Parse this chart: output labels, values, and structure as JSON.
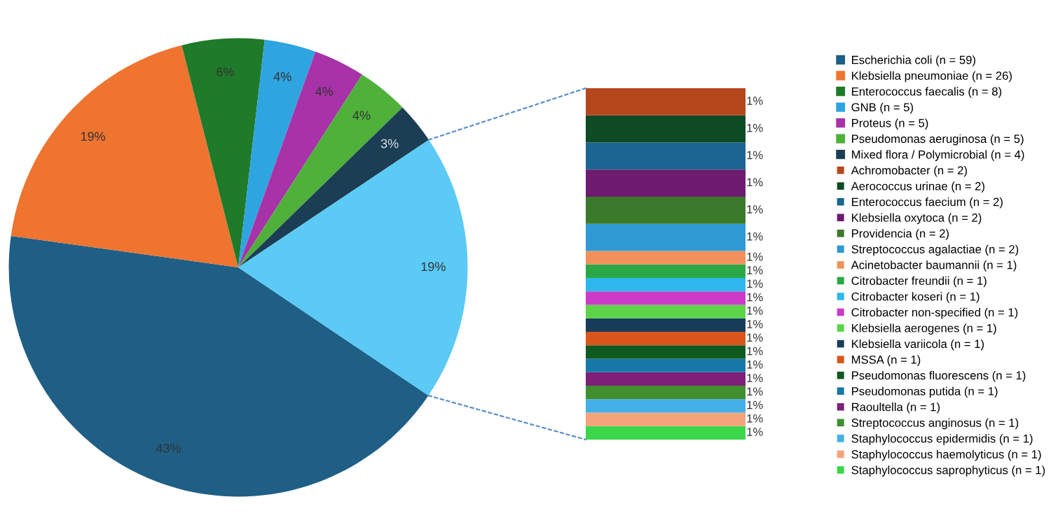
{
  "chart_data": [
    {
      "type": "pie",
      "categories": [
        "Escherichia coli (n = 59)",
        "Klebsiella pneumoniae (n = 26)",
        "Enterococcus faecalis (n = 8)",
        "GNB (n = 5)",
        "Proteus (n = 5)",
        "Pseudomonas aeruginosa (n = 5)",
        "Mixed flora / Polymicrobial (n = 4)",
        null
      ],
      "values": [
        42.75,
        18.84,
        5.8,
        3.62,
        3.62,
        3.62,
        2.9,
        18.84
      ],
      "value_labels": [
        "43%",
        "19%",
        "6%",
        "4%",
        "4%",
        "4%",
        "3%",
        "19%"
      ],
      "colors": [
        "#1f5f86",
        "#ee7430",
        "#1f7a2a",
        "#2ea4e0",
        "#a832a8",
        "#4fb03a",
        "#1b3e55",
        "#5bcaf5"
      ],
      "legend": "right"
    },
    {
      "type": "bar",
      "stacked": true,
      "categories": [
        null
      ],
      "legend": "right",
      "series": [
        {
          "name": "Staphylococcus saprophyticus (n = 1)",
          "color": "#3cd64a",
          "values": [
            0.72
          ],
          "value_labels": [
            "1%"
          ]
        },
        {
          "name": "Staphylococcus haemolyticus (n = 1)",
          "color": "#f4a37a",
          "values": [
            0.72
          ],
          "value_labels": [
            "1%"
          ]
        },
        {
          "name": "Staphylococcus epidermidis (n = 1)",
          "color": "#45b0e8",
          "values": [
            0.72
          ],
          "value_labels": [
            "1%"
          ]
        },
        {
          "name": "Streptococcus anginosus (n = 1)",
          "color": "#3f8f30",
          "values": [
            0.72
          ],
          "value_labels": [
            "1%"
          ]
        },
        {
          "name": "Raoultella (n = 1)",
          "color": "#7e1f78",
          "values": [
            0.72
          ],
          "value_labels": [
            "1%"
          ]
        },
        {
          "name": "Pseudomonas putida (n = 1)",
          "color": "#1678a8",
          "values": [
            0.72
          ],
          "value_labels": [
            "1%"
          ]
        },
        {
          "name": "Pseudomonas fluorescens (n = 1)",
          "color": "#0f5a20",
          "values": [
            0.72
          ],
          "value_labels": [
            "1%"
          ]
        },
        {
          "name": "MSSA (n = 1)",
          "color": "#d9561c",
          "values": [
            0.72
          ],
          "value_labels": [
            "1%"
          ]
        },
        {
          "name": "Klebsiella variicola (n = 1)",
          "color": "#173d5a",
          "values": [
            0.72
          ],
          "value_labels": [
            "1%"
          ]
        },
        {
          "name": "Klebsiella aerogenes (n = 1)",
          "color": "#5bd44a",
          "values": [
            0.72
          ],
          "value_labels": [
            "1%"
          ]
        },
        {
          "name": "Citrobacter non-specified (n = 1)",
          "color": "#cc3ac8",
          "values": [
            0.72
          ],
          "value_labels": [
            "1%"
          ]
        },
        {
          "name": "Citrobacter koseri (n = 1)",
          "color": "#2cb8ea",
          "values": [
            0.72
          ],
          "value_labels": [
            "1%"
          ]
        },
        {
          "name": "Citrobacter freundii (n = 1)",
          "color": "#2aa845",
          "values": [
            0.72
          ],
          "value_labels": [
            "1%"
          ]
        },
        {
          "name": "Acinetobacter baumannii (n = 1)",
          "color": "#f0915a",
          "values": [
            0.72
          ],
          "value_labels": [
            "1%"
          ]
        },
        {
          "name": "Streptococcus agalactiae (n = 2)",
          "color": "#2f9ad4",
          "values": [
            1.45
          ],
          "value_labels": [
            "1%"
          ]
        },
        {
          "name": "Providencia (n = 2)",
          "color": "#3b7a2a",
          "values": [
            1.45
          ],
          "value_labels": [
            "1%"
          ]
        },
        {
          "name": "Klebsiella oxytoca (n = 2)",
          "color": "#6e1a6e",
          "values": [
            1.45
          ],
          "value_labels": [
            "1%"
          ]
        },
        {
          "name": "Enterococcus faecium (n = 2)",
          "color": "#1a6591",
          "values": [
            1.45
          ],
          "value_labels": [
            "1%"
          ]
        },
        {
          "name": "Aerococcus urinae (n = 2)",
          "color": "#0e4a24",
          "values": [
            1.45
          ],
          "value_labels": [
            "1%"
          ]
        },
        {
          "name": "Achromobacter (n = 2)",
          "color": "#b5471c",
          "values": [
            1.45
          ],
          "value_labels": [
            "1%"
          ]
        }
      ]
    }
  ]
}
